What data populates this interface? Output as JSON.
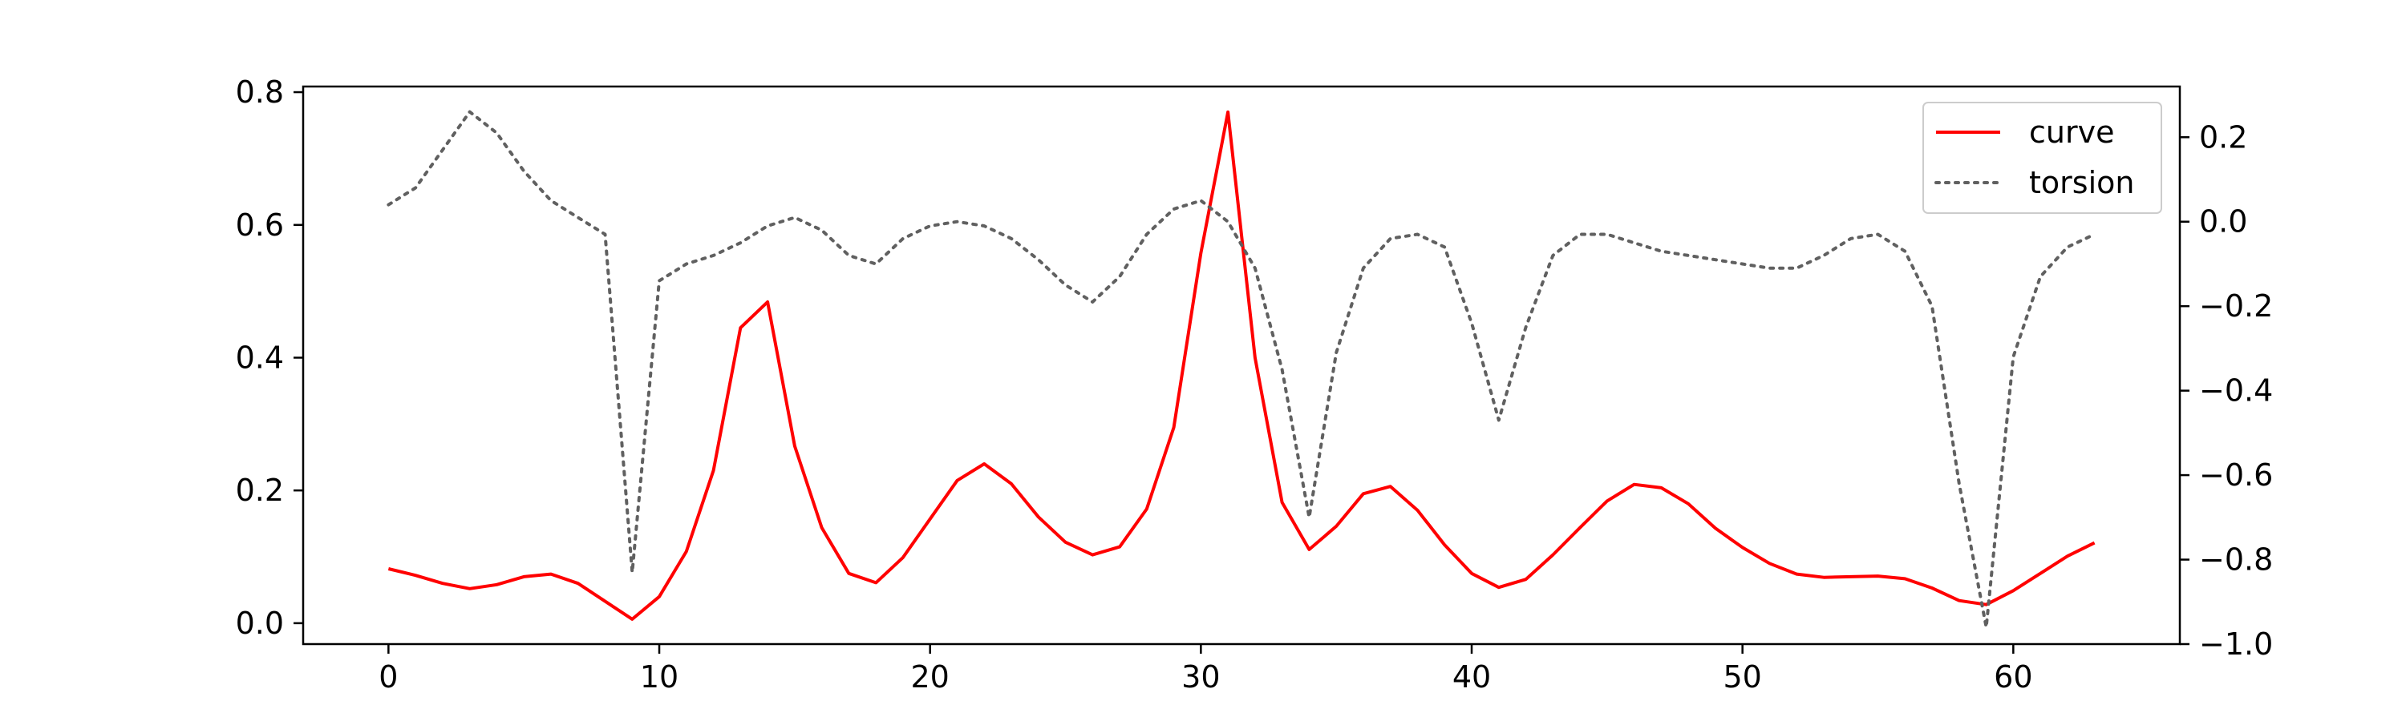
{
  "chart_data": {
    "type": "line",
    "title": "",
    "xlabel": "",
    "ylabel": "",
    "y2label": "",
    "xlim": [
      -3.15,
      66.15
    ],
    "ylim": [
      -0.0315,
      0.8085
    ],
    "y2lim": [
      -1.0,
      0.32
    ],
    "x_ticks": [
      "0",
      "10",
      "20",
      "30",
      "40",
      "50",
      "60"
    ],
    "y_ticks": [
      "0.0",
      "0.2",
      "0.4",
      "0.6",
      "0.8"
    ],
    "y2_ticks": [
      "0.2",
      "0.0",
      "−0.2",
      "−0.4",
      "−0.6",
      "−0.8",
      "−1.0"
    ],
    "x_tick_values": [
      0,
      10,
      20,
      30,
      40,
      50,
      60
    ],
    "y_tick_values": [
      0.0,
      0.2,
      0.4,
      0.6,
      0.8
    ],
    "y2_tick_values": [
      0.2,
      0.0,
      -0.2,
      -0.4,
      -0.6,
      -0.8,
      -1.0
    ],
    "legend_position": "top-right",
    "grid": false,
    "x": [
      0,
      1,
      2,
      3,
      4,
      5,
      6,
      7,
      8,
      9,
      10,
      11,
      12,
      13,
      14,
      15,
      16,
      17,
      18,
      19,
      20,
      21,
      22,
      23,
      24,
      25,
      26,
      27,
      28,
      29,
      30,
      31,
      32,
      33,
      34,
      35,
      36,
      37,
      38,
      39,
      40,
      41,
      42,
      43,
      44,
      45,
      46,
      47,
      48,
      49,
      50,
      51,
      52,
      53,
      54,
      55,
      56,
      57,
      58,
      59,
      60,
      61,
      62,
      63
    ],
    "series": [
      {
        "name": "curve",
        "axis": "left",
        "color": "#ff0000",
        "style": "solid",
        "values": [
          0.082,
          0.072,
          0.06,
          0.052,
          0.058,
          0.07,
          0.074,
          0.06,
          0.033,
          0.006,
          0.04,
          0.108,
          0.23,
          0.445,
          0.484,
          0.267,
          0.144,
          0.075,
          0.061,
          0.099,
          0.157,
          0.215,
          0.24,
          0.21,
          0.16,
          0.122,
          0.103,
          0.115,
          0.172,
          0.295,
          0.558,
          0.77,
          0.4,
          0.182,
          0.111,
          0.146,
          0.195,
          0.206,
          0.17,
          0.118,
          0.075,
          0.054,
          0.066,
          0.103,
          0.144,
          0.184,
          0.209,
          0.204,
          0.18,
          0.143,
          0.114,
          0.09,
          0.074,
          0.069,
          0.07,
          0.071,
          0.067,
          0.053,
          0.034,
          0.028,
          0.049,
          0.075,
          0.101,
          0.121
        ]
      },
      {
        "name": "torsion",
        "axis": "right",
        "color": "#606060",
        "style": "dotted",
        "values": [
          0.04,
          0.08,
          0.17,
          0.26,
          0.21,
          0.12,
          0.05,
          0.01,
          -0.03,
          -0.83,
          -0.14,
          -0.1,
          -0.08,
          -0.05,
          -0.01,
          0.01,
          -0.02,
          -0.08,
          -0.1,
          -0.04,
          -0.01,
          0.0,
          -0.01,
          -0.04,
          -0.09,
          -0.15,
          -0.19,
          -0.13,
          -0.03,
          0.03,
          0.05,
          0.0,
          -0.11,
          -0.35,
          -0.7,
          -0.31,
          -0.11,
          -0.04,
          -0.03,
          -0.06,
          -0.24,
          -0.47,
          -0.25,
          -0.08,
          -0.03,
          -0.03,
          -0.05,
          -0.07,
          -0.08,
          -0.09,
          -0.1,
          -0.11,
          -0.11,
          -0.08,
          -0.04,
          -0.03,
          -0.07,
          -0.2,
          -0.62,
          -0.96,
          -0.32,
          -0.13,
          -0.06,
          -0.03
        ]
      }
    ]
  }
}
